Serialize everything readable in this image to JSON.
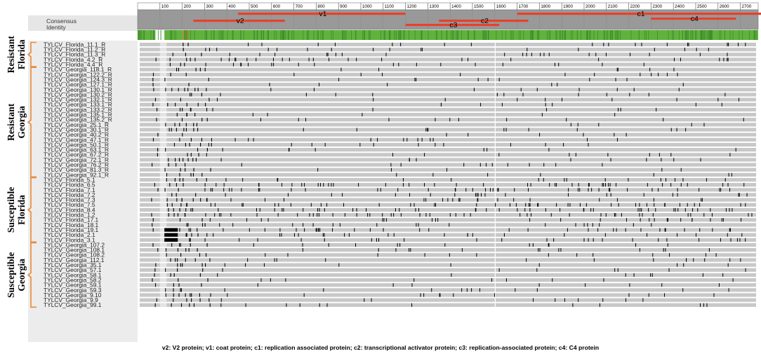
{
  "header": {
    "consensus_label": "Consensus",
    "identity_label": "Identity"
  },
  "ruler_ticks": [
    "100",
    "200",
    "300",
    "400",
    "500",
    "600",
    "700",
    "800",
    "900",
    "1000",
    "1100",
    "1200",
    "1300",
    "1400",
    "1500",
    "1600",
    "1700",
    "1800",
    "1900",
    "2000",
    "2100",
    "2200",
    "2300",
    "2400",
    "2500",
    "2600",
    "2700"
  ],
  "genes": [
    {
      "label": "v2",
      "start": 250,
      "end": 660,
      "lane": 2
    },
    {
      "label": "v1",
      "start": 450,
      "end": 1200,
      "lane": 0
    },
    {
      "label": "c1",
      "start": 1700,
      "end": 2800,
      "lane": 0
    },
    {
      "label": "c2",
      "start": 1350,
      "end": 1750,
      "lane": 2
    },
    {
      "label": "c3",
      "start": 1200,
      "end": 1620,
      "lane": 3
    },
    {
      "label": "c4",
      "start": 2300,
      "end": 2680,
      "lane": 1
    }
  ],
  "groups": [
    {
      "label": [
        "Resistant",
        "Florida"
      ],
      "sequences": [
        "TYLCV_Florida_11.1_R",
        "TYLCV_Florida_11.2_R",
        "TYLCV_Florida_11.3_R",
        "TYLCV_Florida_4.2_R",
        "TYLCV_Florida_4.4_R"
      ]
    },
    {
      "label": [
        "Resistant",
        "Georgia"
      ],
      "sequences": [
        "TYLCV_Georgia_118.1_R",
        "TYLCV_Georgia_122.2_R",
        "TYLCV_Georgia_124.3_R",
        "TYLCV_Georgia_127.1_R",
        "TYLCV_Georgia_130.1_R",
        "TYLCV_Georgia_130.2_R",
        "TYLCV_Georgia_132.1_R",
        "TYLCV_Georgia_133.1_R",
        "TYLCV_Georgia_133.2_R",
        "TYLCV_Georgia_135.1_R",
        "TYLCV_Georgia_135.2_R",
        "TYLCV_Georgia_25.1_R",
        "TYLCV_Georgia_30.1_R",
        "TYLCV_Georgia_40.2_R",
        "TYLCV_Georgia_47.1_R",
        "TYLCV_Georgia_50.1_R",
        "TYLCV_Georgia_63.1_R",
        "TYLCV_Georgia_67.2_R",
        "TYLCV_Georgia_72.1_R",
        "TYLCV_Georgia_76.2_R",
        "TYLCV_Georgia_81.3_R",
        "TYLCV_Georgia_92.1_R"
      ]
    },
    {
      "label": [
        "Susceptible",
        "Florida"
      ],
      "sequences": [
        "TYLCV_Florida_5.1",
        "TYLCV_Florida_6.5",
        "TYLCV_Florida_7.1",
        "TYLCV_Florida_7.2",
        "TYLCV_Florida_7.3",
        "TYLCV_Florida_7.5",
        "TYLCV_Florida_8.4",
        "TYLCV_Florida_1.2",
        "TYLCV_Florida_17.1",
        "TYLCV_Florida_18.1",
        "TYLCV_Florida_19.1",
        "TYLCV_Florida_2.1",
        "TYLCV_Florida_3.1"
      ]
    },
    {
      "label": [
        "Susceptible",
        "Georgia"
      ],
      "sequences": [
        "TYLCV_Georgia_107.2",
        "TYLCV_Georgia_108.1",
        "TYLCV_Georgia_108.2",
        "TYLCV_Georgia_112.1",
        "TYLCV_Georgia_35.1",
        "TYLCV_Georgia_57.1",
        "TYLCV_Georgia_58.1",
        "TYLCV_Georgia_58.2",
        "TYLCV_Georgia_59.1",
        "TYLCV_Georgia_59.3",
        "TYLCV_Georgia_9.10",
        "TYLCV_Georgia_9.9",
        "TYLCV_Georgia_99.1"
      ]
    }
  ],
  "colors": {
    "gene_bar": "#e8412c",
    "identity": "#5fb33d",
    "track": "#c8c8c8",
    "snp": "#000000",
    "bracket": "#e8893a",
    "gene_panel": "#999999"
  },
  "caption": "v2: V2 protein; v1: coat protein; c1: replication associated protein; c2: transcriptional activator protein; c3: replication-associated protein; c4: C4 protein"
}
